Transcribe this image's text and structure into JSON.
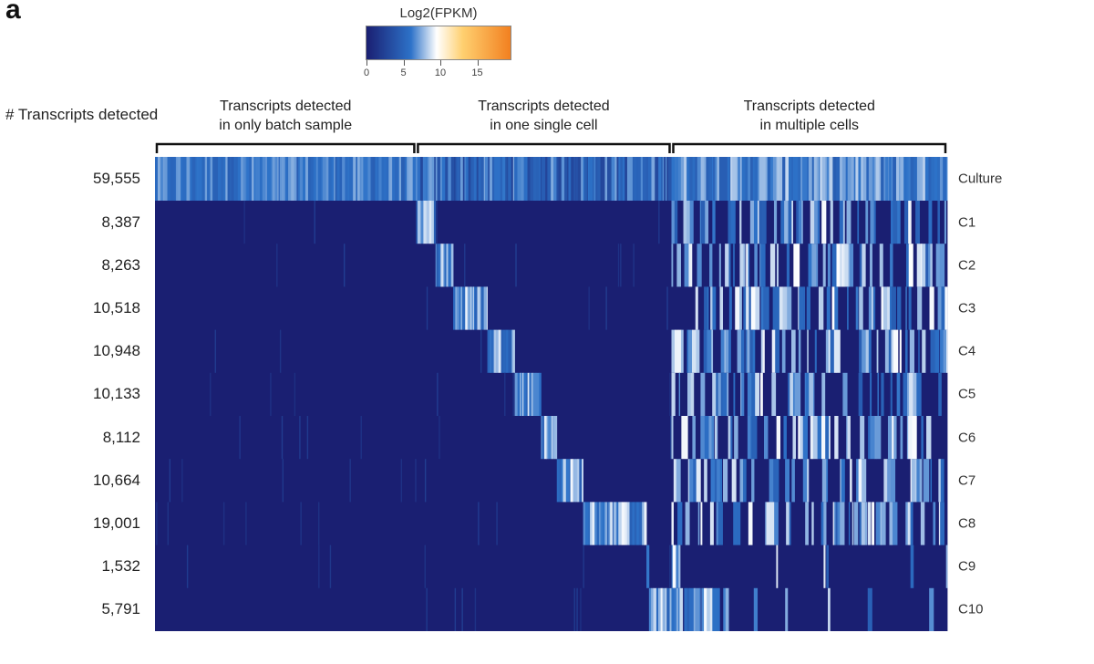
{
  "panel_letter": "a",
  "chart_data": {
    "type": "heatmap",
    "title": "",
    "colorbar": {
      "title": "Log2(FPKM)",
      "min": 0,
      "max": 19.5,
      "ticks": [
        0,
        5,
        10,
        15
      ],
      "tick_labels": [
        "0",
        "5",
        "10",
        "15"
      ],
      "stops": [
        {
          "value": 0,
          "color": "#1a1f72"
        },
        {
          "value": 6,
          "color": "#2d72c8"
        },
        {
          "value": 9.5,
          "color": "#ffffff"
        },
        {
          "value": 13,
          "color": "#ffd070"
        },
        {
          "value": 19.5,
          "color": "#f28020"
        }
      ]
    },
    "y_axis_title": "# Transcripts detected",
    "rows": [
      {
        "name": "Culture",
        "transcripts_detected": "59,555"
      },
      {
        "name": "C1",
        "transcripts_detected": "8,387"
      },
      {
        "name": "C2",
        "transcripts_detected": "8,263"
      },
      {
        "name": "C3",
        "transcripts_detected": "10,518"
      },
      {
        "name": "C4",
        "transcripts_detected": "10,948"
      },
      {
        "name": "C5",
        "transcripts_detected": "10,133"
      },
      {
        "name": "C6",
        "transcripts_detected": "8,112"
      },
      {
        "name": "C7",
        "transcripts_detected": "10,664"
      },
      {
        "name": "C8",
        "transcripts_detected": "19,001"
      },
      {
        "name": "C9",
        "transcripts_detected": "1,532"
      },
      {
        "name": "C10",
        "transcripts_detected": "5,791"
      }
    ],
    "column_groups": [
      {
        "label_line1": "Transcripts detected",
        "label_line2": "in only batch sample",
        "fraction": 0.3296
      },
      {
        "label_line1": "Transcripts detected",
        "label_line2": "in one single cell",
        "fraction": 0.3223
      },
      {
        "label_line1": "Transcripts detected",
        "label_line2": "in multiple cells",
        "fraction": 0.3481
      }
    ],
    "single_cell_blocks_fraction_of_group": [
      {
        "cell": "C1",
        "fraction": 0.076
      },
      {
        "cell": "C2",
        "fraction": 0.069
      },
      {
        "cell": "C3",
        "fraction": 0.134
      },
      {
        "cell": "C4",
        "fraction": 0.107
      },
      {
        "cell": "C5",
        "fraction": 0.103
      },
      {
        "cell": "C6",
        "fraction": 0.062
      },
      {
        "cell": "C7",
        "fraction": 0.103
      },
      {
        "cell": "C8",
        "fraction": 0.248
      },
      {
        "cell": "C9",
        "fraction": 0.01
      },
      {
        "cell": "C10",
        "fraction": 0.088
      }
    ],
    "values_description": {
      "culture_batch_only_log2fpkm": [
        4.5,
        7.5
      ],
      "culture_single_cell_log2fpkm": [
        2.5,
        7.5
      ],
      "culture_multi_cell_log2fpkm": [
        4.5,
        8.5
      ],
      "undetected_log2fpkm": 0,
      "detected_log2fpkm": [
        4.5,
        9.5
      ]
    }
  }
}
